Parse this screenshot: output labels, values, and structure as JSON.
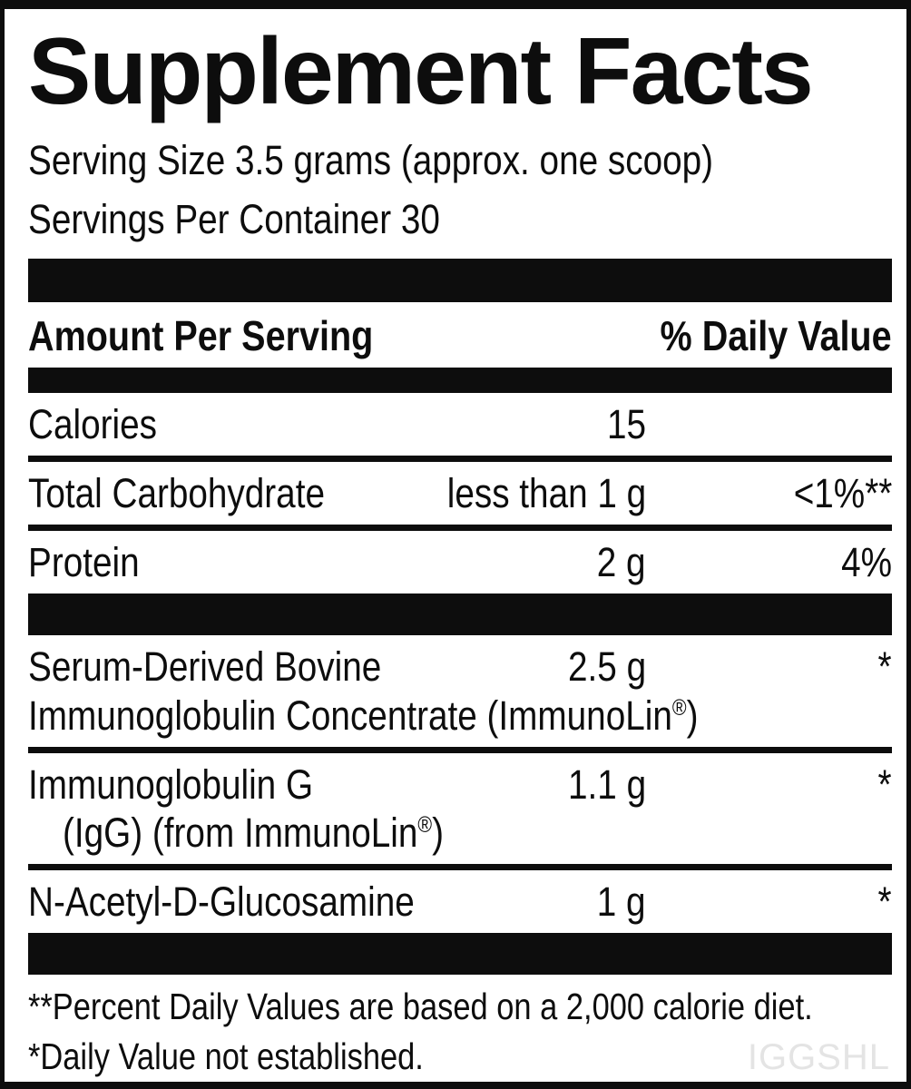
{
  "label": {
    "title": "Supplement Facts",
    "serving_size": "Serving Size 3.5 grams (approx. one scoop)",
    "servings_per_container": "Servings Per Container 30",
    "header": {
      "amount_label": "Amount Per Serving",
      "daily_value_label": "% Daily Value"
    },
    "rows": [
      {
        "name": "Calories",
        "amount": "15",
        "dv": ""
      },
      {
        "name": "Total Carbohydrate",
        "amount": "less than 1 g",
        "dv": "<1%**"
      },
      {
        "name": "Protein",
        "amount": "2 g",
        "dv": "4%"
      },
      {
        "name": "Serum-Derived Bovine",
        "name2": "Immunoglobulin Concentrate (ImmunoLin",
        "name2_sup": "®",
        "name2_end": ")",
        "amount": "2.5 g",
        "dv": "*"
      },
      {
        "name": "Immunoglobulin G",
        "name2": "(IgG) (from ImmunoLin",
        "name2_sup": "®",
        "name2_end": ")",
        "amount": "1.1 g",
        "dv": "*"
      },
      {
        "name": "N-Acetyl-D-Glucosamine",
        "amount": "1 g",
        "dv": "*"
      }
    ],
    "footnotes": [
      "**Percent Daily Values are based on a 2,000 calorie diet.",
      "*Daily Value not established."
    ],
    "watermark": "IGGSHL",
    "colors": {
      "text": "#0d0d0d",
      "band": "#0d0d0d",
      "background": "#ffffff",
      "watermark": "#e4e4e4"
    }
  }
}
